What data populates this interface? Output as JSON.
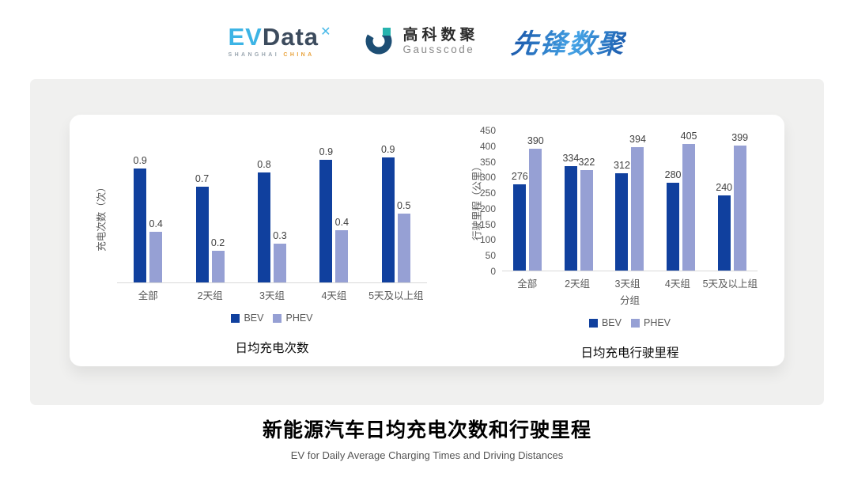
{
  "header": {
    "evdata": {
      "part1": "EV",
      "part2": "Data",
      "sub1": "SHANGHAI",
      "sub2": "CHINA"
    },
    "gausscode": {
      "name_cn": "高科数聚",
      "name_en": "Gausscode"
    },
    "xianfeng": {
      "text": "先锋数聚"
    }
  },
  "colors": {
    "bev": "#10409e",
    "phev": "#96a0d4",
    "panel_bg": "#f0f0ef",
    "card_bg": "#ffffff",
    "axis_text": "#595959",
    "value_text": "#404040",
    "baseline": "#d9d9d9"
  },
  "chart_data": [
    {
      "id": "daily-charging-times",
      "type": "bar",
      "title": "日均充电次数",
      "ylabel": "充电次数（次）",
      "xlabel": "",
      "categories": [
        "全部",
        "2天组",
        "3天组",
        "4天组",
        "5天及以上组"
      ],
      "series": [
        {
          "name": "BEV",
          "color": "#10409e",
          "values": [
            0.9,
            0.7,
            0.8,
            0.9,
            0.9
          ],
          "heights": [
            0.86,
            0.72,
            0.83,
            0.92,
            0.94
          ]
        },
        {
          "name": "PHEV",
          "color": "#96a0d4",
          "values": [
            0.4,
            0.2,
            0.3,
            0.4,
            0.5
          ],
          "heights": [
            0.38,
            0.24,
            0.29,
            0.39,
            0.52
          ]
        }
      ],
      "ylim": [
        0,
        1.0
      ],
      "yticks": [],
      "grid": false,
      "legend_position": "bottom",
      "value_labels": true
    },
    {
      "id": "daily-driving-distance",
      "type": "bar",
      "title": "日均充电行驶里程",
      "ylabel": "行驶里程（公里）",
      "xlabel": "分组",
      "categories": [
        "全部",
        "2天组",
        "3天组",
        "4天组",
        "5天及以上组"
      ],
      "series": [
        {
          "name": "BEV",
          "color": "#10409e",
          "values": [
            276,
            334,
            312,
            280,
            240
          ]
        },
        {
          "name": "PHEV",
          "color": "#96a0d4",
          "values": [
            390,
            322,
            394,
            405,
            399
          ]
        }
      ],
      "ylim": [
        0,
        450
      ],
      "yticks": [
        0,
        50,
        100,
        150,
        200,
        250,
        300,
        350,
        400,
        450
      ],
      "grid": false,
      "legend_position": "bottom",
      "value_labels": true
    }
  ],
  "footer": {
    "title": "新能源汽车日均充电次数和行驶里程",
    "subtitle": "EV for Daily Average Charging Times and Driving Distances"
  }
}
